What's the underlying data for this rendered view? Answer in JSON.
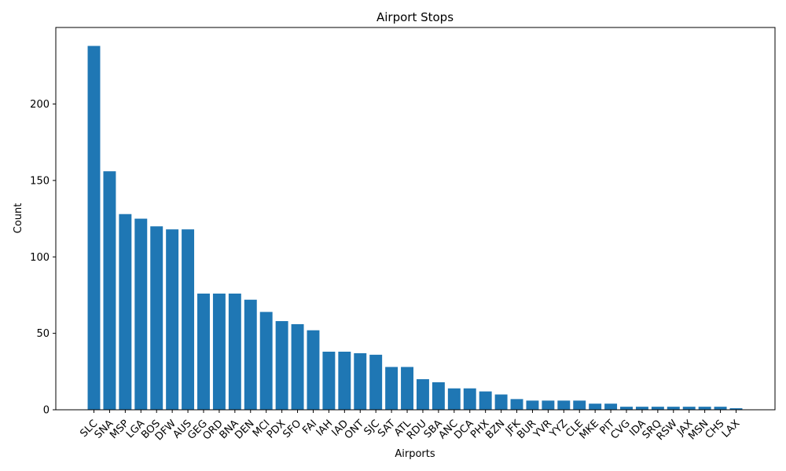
{
  "chart_data": {
    "type": "bar",
    "title": "Airport Stops",
    "xlabel": "Airports",
    "ylabel": "Count",
    "ylim": [
      0,
      250
    ],
    "yticks": [
      0,
      50,
      100,
      150,
      200
    ],
    "colors": {
      "bar": "#1f77b4"
    },
    "categories": [
      "SLC",
      "SNA",
      "MSP",
      "LGA",
      "BOS",
      "DFW",
      "AUS",
      "GEG",
      "ORD",
      "BNA",
      "DEN",
      "MCI",
      "PDX",
      "SFO",
      "FAI",
      "IAH",
      "IAD",
      "ONT",
      "SJC",
      "SAT",
      "ATL",
      "RDU",
      "SBA",
      "ANC",
      "DCA",
      "PHX",
      "BZN",
      "JFK",
      "BUR",
      "YVR",
      "YYZ",
      "CLE",
      "MKE",
      "PIT",
      "CVG",
      "IDA",
      "SRQ",
      "RSW",
      "JAX",
      "MSN",
      "CHS",
      "LAX"
    ],
    "values": [
      238,
      156,
      128,
      125,
      120,
      118,
      118,
      76,
      76,
      76,
      72,
      64,
      58,
      56,
      52,
      38,
      38,
      37,
      36,
      28,
      28,
      20,
      18,
      14,
      14,
      12,
      10,
      7,
      6,
      6,
      6,
      6,
      4,
      4,
      2,
      2,
      2,
      2,
      2,
      2,
      2,
      1
    ]
  }
}
